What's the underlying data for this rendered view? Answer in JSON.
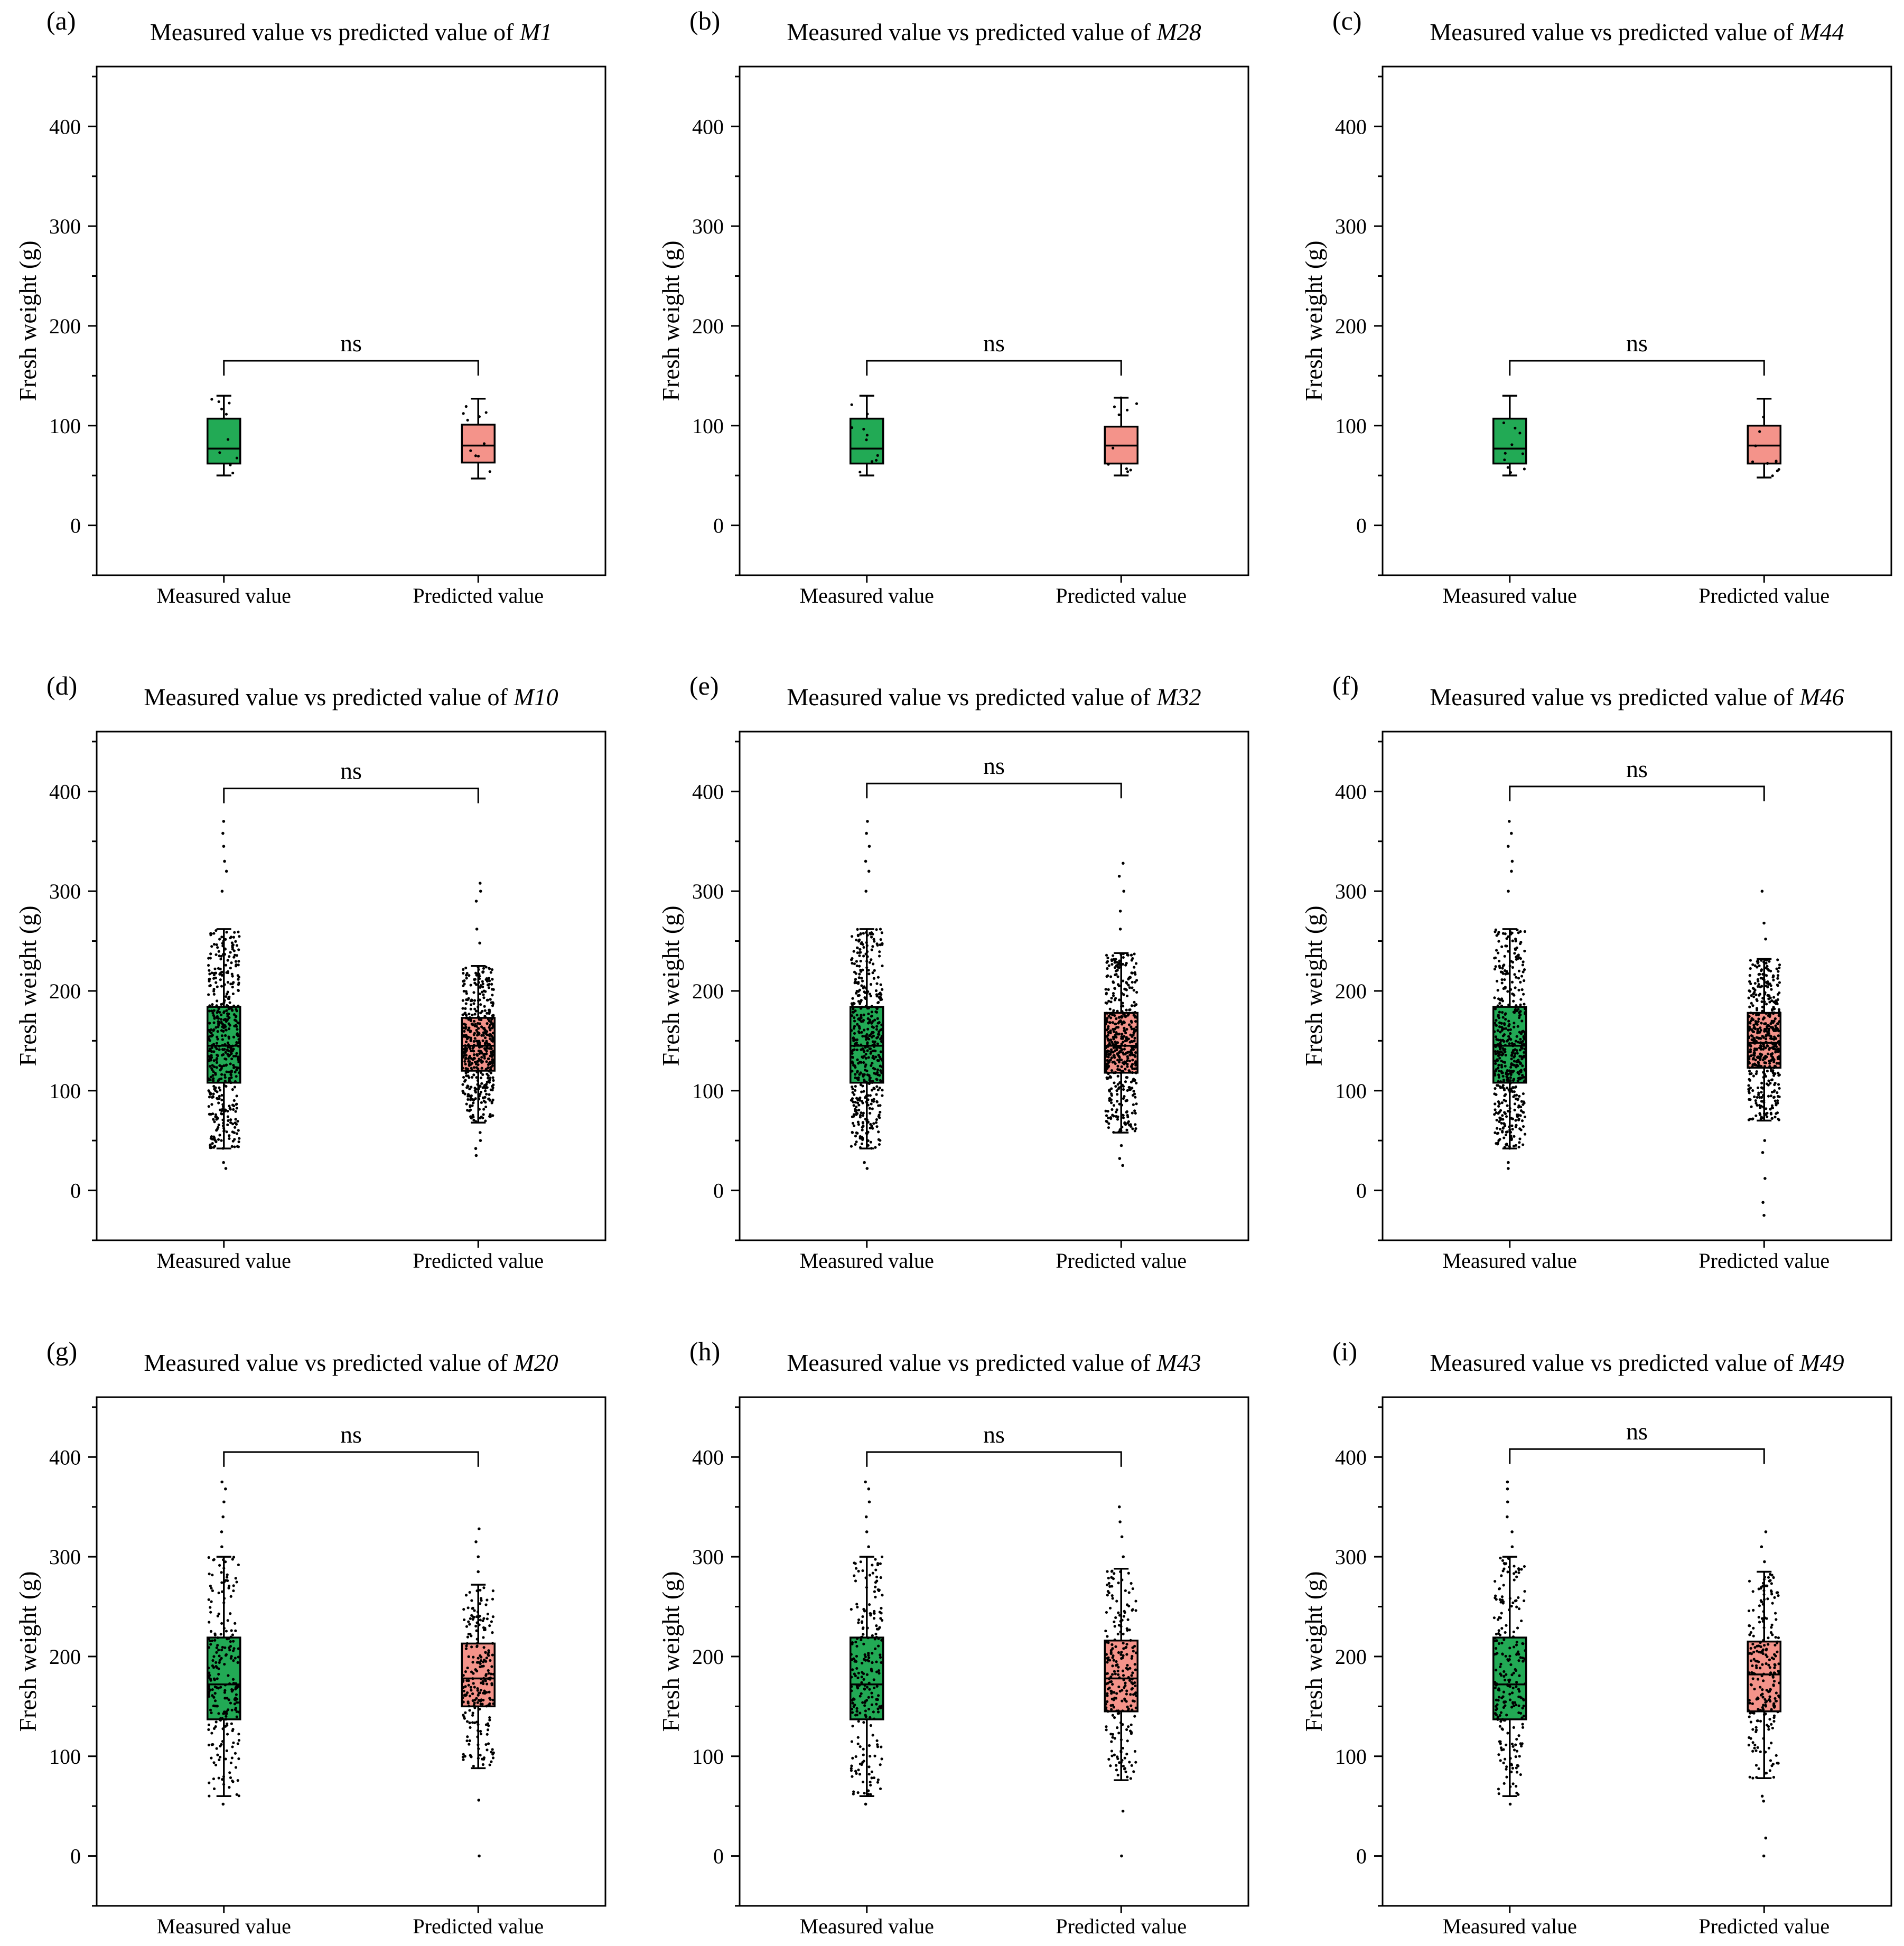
{
  "figure": {
    "sig_marker": "ns"
  },
  "colors": {
    "measured": "#22AA55",
    "predicted": "#F4938A"
  },
  "chart_data": [
    {
      "id": "a",
      "type": "box",
      "letter": "(a)",
      "title_prefix": "Measured value vs predicted value of ",
      "model": "M1",
      "xlabel": "",
      "ylabel": "Fresh weight (g)",
      "ylim": [
        -50,
        460
      ],
      "yticks": [
        0,
        100,
        200,
        300,
        400
      ],
      "categories": [
        "Measured value",
        "Predicted value"
      ],
      "significance": "ns",
      "bracket_y": 165,
      "series": [
        {
          "name": "Measured value",
          "q1": 62,
          "median": 77,
          "q3": 107,
          "whisker_low": 50,
          "whisker_high": 130,
          "mean": 82,
          "n": 10,
          "min": 50,
          "max": 130,
          "outliers": []
        },
        {
          "name": "Predicted value",
          "q1": 63,
          "median": 80,
          "q3": 101,
          "whisker_low": 47,
          "whisker_high": 127,
          "mean": 82,
          "n": 10,
          "min": 47,
          "max": 127,
          "outliers": []
        }
      ]
    },
    {
      "id": "b",
      "type": "box",
      "letter": "(b)",
      "title_prefix": "Measured value vs predicted value of ",
      "model": "M28",
      "xlabel": "",
      "ylabel": "Fresh weight (g)",
      "ylim": [
        -50,
        460
      ],
      "yticks": [
        0,
        100,
        200,
        300,
        400
      ],
      "categories": [
        "Measured value",
        "Predicted value"
      ],
      "significance": "ns",
      "bracket_y": 165,
      "series": [
        {
          "name": "Measured value",
          "q1": 62,
          "median": 77,
          "q3": 107,
          "whisker_low": 50,
          "whisker_high": 130,
          "mean": 82,
          "n": 10,
          "min": 50,
          "max": 130,
          "outliers": []
        },
        {
          "name": "Predicted value",
          "q1": 62,
          "median": 80,
          "q3": 99,
          "whisker_low": 50,
          "whisker_high": 128,
          "mean": 81,
          "n": 10,
          "min": 50,
          "max": 128,
          "outliers": []
        }
      ]
    },
    {
      "id": "c",
      "type": "box",
      "letter": "(c)",
      "title_prefix": "Measured value vs predicted value of ",
      "model": "M44",
      "xlabel": "",
      "ylabel": "Fresh weight (g)",
      "ylim": [
        -50,
        460
      ],
      "yticks": [
        0,
        100,
        200,
        300,
        400
      ],
      "categories": [
        "Measured value",
        "Predicted value"
      ],
      "significance": "ns",
      "bracket_y": 165,
      "series": [
        {
          "name": "Measured value",
          "q1": 62,
          "median": 77,
          "q3": 107,
          "whisker_low": 50,
          "whisker_high": 130,
          "mean": 82,
          "n": 10,
          "min": 50,
          "max": 130,
          "outliers": []
        },
        {
          "name": "Predicted value",
          "q1": 62,
          "median": 80,
          "q3": 100,
          "whisker_low": 48,
          "whisker_high": 127,
          "mean": 82,
          "n": 10,
          "min": 48,
          "max": 127,
          "outliers": []
        }
      ]
    },
    {
      "id": "d",
      "type": "box",
      "letter": "(d)",
      "title_prefix": "Measured value vs predicted value of ",
      "model": "M10",
      "xlabel": "",
      "ylabel": "Fresh weight (g)",
      "ylim": [
        -50,
        460
      ],
      "yticks": [
        0,
        100,
        200,
        300,
        400
      ],
      "categories": [
        "Measured value",
        "Predicted value"
      ],
      "significance": "ns",
      "bracket_y": 403,
      "series": [
        {
          "name": "Measured value",
          "q1": 108,
          "median": 145,
          "q3": 184,
          "whisker_low": 42,
          "whisker_high": 262,
          "mean": 148,
          "n": 480,
          "min": 22,
          "max": 370,
          "outliers": [
            22,
            28,
            300,
            320,
            330,
            345,
            358,
            370
          ]
        },
        {
          "name": "Predicted value",
          "q1": 120,
          "median": 145,
          "q3": 173,
          "whisker_low": 68,
          "whisker_high": 225,
          "mean": 147,
          "n": 480,
          "min": 35,
          "max": 308,
          "outliers": [
            35,
            42,
            50,
            58,
            248,
            262,
            290,
            300,
            308
          ]
        }
      ]
    },
    {
      "id": "e",
      "type": "box",
      "letter": "(e)",
      "title_prefix": "Measured value vs predicted value of ",
      "model": "M32",
      "xlabel": "",
      "ylabel": "Fresh weight (g)",
      "ylim": [
        -50,
        460
      ],
      "yticks": [
        0,
        100,
        200,
        300,
        400
      ],
      "categories": [
        "Measured value",
        "Predicted value"
      ],
      "significance": "ns",
      "bracket_y": 408,
      "series": [
        {
          "name": "Measured value",
          "q1": 108,
          "median": 145,
          "q3": 184,
          "whisker_low": 42,
          "whisker_high": 262,
          "mean": 148,
          "n": 480,
          "min": 22,
          "max": 370,
          "outliers": [
            22,
            28,
            300,
            320,
            330,
            345,
            358,
            370
          ]
        },
        {
          "name": "Predicted value",
          "q1": 118,
          "median": 145,
          "q3": 178,
          "whisker_low": 58,
          "whisker_high": 238,
          "mean": 150,
          "n": 480,
          "min": 25,
          "max": 328,
          "outliers": [
            25,
            32,
            45,
            262,
            280,
            300,
            315,
            328
          ]
        }
      ]
    },
    {
      "id": "f",
      "type": "box",
      "letter": "(f)",
      "title_prefix": "Measured value vs predicted value of ",
      "model": "M46",
      "xlabel": "",
      "ylabel": "Fresh weight (g)",
      "ylim": [
        -50,
        460
      ],
      "yticks": [
        0,
        100,
        200,
        300,
        400
      ],
      "categories": [
        "Measured value",
        "Predicted value"
      ],
      "significance": "ns",
      "bracket_y": 405,
      "series": [
        {
          "name": "Measured value",
          "q1": 108,
          "median": 145,
          "q3": 184,
          "whisker_low": 42,
          "whisker_high": 262,
          "mean": 148,
          "n": 480,
          "min": 22,
          "max": 370,
          "outliers": [
            22,
            28,
            300,
            320,
            330,
            345,
            358,
            370
          ]
        },
        {
          "name": "Predicted value",
          "q1": 123,
          "median": 148,
          "q3": 178,
          "whisker_low": 70,
          "whisker_high": 232,
          "mean": 150,
          "n": 480,
          "min": -25,
          "max": 300,
          "outliers": [
            -25,
            -12,
            12,
            38,
            50,
            252,
            268,
            300
          ]
        }
      ]
    },
    {
      "id": "g",
      "type": "box",
      "letter": "(g)",
      "title_prefix": "Measured value vs predicted value of ",
      "model": "M20",
      "xlabel": "",
      "ylabel": "Fresh weight (g)",
      "ylim": [
        -50,
        460
      ],
      "yticks": [
        0,
        100,
        200,
        300,
        400
      ],
      "categories": [
        "Measured value",
        "Predicted value"
      ],
      "significance": "ns",
      "bracket_y": 405,
      "series": [
        {
          "name": "Measured value",
          "q1": 137,
          "median": 172,
          "q3": 219,
          "whisker_low": 60,
          "whisker_high": 300,
          "mean": 176,
          "n": 240,
          "min": 52,
          "max": 375,
          "outliers": [
            52,
            310,
            325,
            340,
            355,
            368,
            375
          ]
        },
        {
          "name": "Predicted value",
          "q1": 150,
          "median": 178,
          "q3": 213,
          "whisker_low": 88,
          "whisker_high": 272,
          "mean": 180,
          "n": 240,
          "min": 0,
          "max": 328,
          "outliers": [
            0,
            56,
            285,
            300,
            315,
            328
          ]
        }
      ]
    },
    {
      "id": "h",
      "type": "box",
      "letter": "(h)",
      "title_prefix": "Measured value vs predicted value of ",
      "model": "M43",
      "xlabel": "",
      "ylabel": "Fresh weight (g)",
      "ylim": [
        -50,
        460
      ],
      "yticks": [
        0,
        100,
        200,
        300,
        400
      ],
      "categories": [
        "Measured value",
        "Predicted value"
      ],
      "significance": "ns",
      "bracket_y": 405,
      "series": [
        {
          "name": "Measured value",
          "q1": 137,
          "median": 172,
          "q3": 219,
          "whisker_low": 60,
          "whisker_high": 300,
          "mean": 176,
          "n": 240,
          "min": 52,
          "max": 375,
          "outliers": [
            52,
            310,
            325,
            340,
            355,
            368,
            375
          ]
        },
        {
          "name": "Predicted value",
          "q1": 145,
          "median": 178,
          "q3": 216,
          "whisker_low": 76,
          "whisker_high": 288,
          "mean": 180,
          "n": 240,
          "min": 0,
          "max": 350,
          "outliers": [
            0,
            45,
            300,
            320,
            335,
            350
          ]
        }
      ]
    },
    {
      "id": "i",
      "type": "box",
      "letter": "(i)",
      "title_prefix": "Measured value vs predicted value of ",
      "model": "M49",
      "xlabel": "",
      "ylabel": "Fresh weight (g)",
      "ylim": [
        -50,
        460
      ],
      "yticks": [
        0,
        100,
        200,
        300,
        400
      ],
      "categories": [
        "Measured value",
        "Predicted value"
      ],
      "significance": "ns",
      "bracket_y": 408,
      "series": [
        {
          "name": "Measured value",
          "q1": 137,
          "median": 172,
          "q3": 219,
          "whisker_low": 60,
          "whisker_high": 300,
          "mean": 176,
          "n": 240,
          "min": 52,
          "max": 375,
          "outliers": [
            52,
            310,
            325,
            340,
            355,
            368,
            375
          ]
        },
        {
          "name": "Predicted value",
          "q1": 145,
          "median": 182,
          "q3": 215,
          "whisker_low": 78,
          "whisker_high": 285,
          "mean": 182,
          "n": 240,
          "min": 0,
          "max": 325,
          "outliers": [
            0,
            18,
            55,
            60,
            295,
            310,
            325
          ]
        }
      ]
    }
  ]
}
